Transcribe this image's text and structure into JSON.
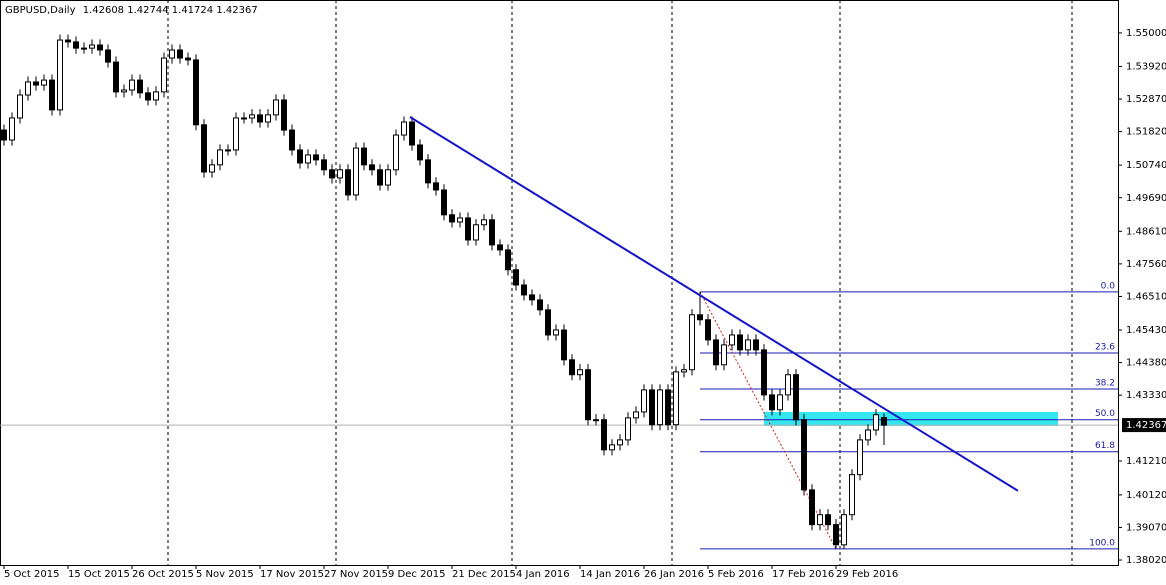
{
  "chart_data": {
    "type": "candlestick",
    "symbol": "GBPUSD,Daily",
    "xlim": [
      -0.5,
      139.25
    ],
    "ylim": [
      1.3786,
      1.5606
    ],
    "yticks": [
      {
        "value": 1.55,
        "label": "1.55000"
      },
      {
        "value": 1.5392,
        "label": "1.53920"
      },
      {
        "value": 1.5287,
        "label": "1.52870"
      },
      {
        "value": 1.5182,
        "label": "1.51820"
      },
      {
        "value": 1.5074,
        "label": "1.50740"
      },
      {
        "value": 1.4969,
        "label": "1.49690"
      },
      {
        "value": 1.4861,
        "label": "1.48610"
      },
      {
        "value": 1.4756,
        "label": "1.47560"
      },
      {
        "value": 1.4651,
        "label": "1.46510"
      },
      {
        "value": 1.4543,
        "label": "1.45430"
      },
      {
        "value": 1.4438,
        "label": "1.44380"
      },
      {
        "value": 1.4333,
        "label": "1.43330"
      },
      {
        "value": 1.4121,
        "label": "1.41210"
      },
      {
        "value": 1.4012,
        "label": "1.40120"
      },
      {
        "value": 1.3907,
        "label": "1.39070"
      },
      {
        "value": 1.3802,
        "label": "1.38020"
      }
    ],
    "xticks": [
      {
        "value": 0,
        "label": "5 Oct 2015"
      },
      {
        "value": 8,
        "label": "15 Oct 2015"
      },
      {
        "value": 16,
        "label": "26 Oct 2015"
      },
      {
        "value": 24,
        "label": "5 Nov 2015"
      },
      {
        "value": 32,
        "label": "17 Nov 2015"
      },
      {
        "value": 40,
        "label": "27 Nov 2015"
      },
      {
        "value": 48,
        "label": "9 Dec 2015"
      },
      {
        "value": 56,
        "label": "21 Dec 2015"
      },
      {
        "value": 64,
        "label": "4 Jan 2016"
      },
      {
        "value": 72,
        "label": "14 Jan 2016"
      },
      {
        "value": 80,
        "label": "26 Jan 2016"
      },
      {
        "value": 88,
        "label": "5 Feb 2016"
      },
      {
        "value": 96,
        "label": "17 Feb 2016"
      },
      {
        "value": 104,
        "label": "29 Feb 2016"
      }
    ],
    "separators": [
      20.5,
      41.5,
      63.5,
      83.5,
      104.5,
      133.5
    ],
    "bull_color": "#ffffff",
    "bear_color": "#000000",
    "candles": [
      [
        1.5187,
        1.5205,
        1.5137,
        1.5155
      ],
      [
        1.5155,
        1.5244,
        1.5137,
        1.5226
      ],
      [
        1.5226,
        1.5318,
        1.5208,
        1.53
      ],
      [
        1.53,
        1.536,
        1.5282,
        1.5342
      ],
      [
        1.5342,
        1.536,
        1.5314,
        1.5332
      ],
      [
        1.5332,
        1.5366,
        1.5314,
        1.5348
      ],
      [
        1.5348,
        1.5366,
        1.5234,
        1.5252
      ],
      [
        1.5252,
        1.5495,
        1.5234,
        1.5477
      ],
      [
        1.5477,
        1.5495,
        1.5453,
        1.5471
      ],
      [
        1.5471,
        1.5489,
        1.5433,
        1.5451
      ],
      [
        1.5451,
        1.5469,
        1.5433,
        1.5451
      ],
      [
        1.5451,
        1.5479,
        1.5433,
        1.5461
      ],
      [
        1.5461,
        1.5479,
        1.5427,
        1.5445
      ],
      [
        1.5445,
        1.5463,
        1.5388,
        1.5406
      ],
      [
        1.5406,
        1.5424,
        1.5292,
        1.531
      ],
      [
        1.531,
        1.5334,
        1.5292,
        1.5316
      ],
      [
        1.5316,
        1.5366,
        1.5298,
        1.5348
      ],
      [
        1.5348,
        1.5366,
        1.5289,
        1.5307
      ],
      [
        1.5307,
        1.5325,
        1.5266,
        1.5284
      ],
      [
        1.5284,
        1.5328,
        1.5266,
        1.531
      ],
      [
        1.531,
        1.5437,
        1.5292,
        1.5419
      ],
      [
        1.5419,
        1.5463,
        1.5401,
        1.5445
      ],
      [
        1.5445,
        1.5463,
        1.5401,
        1.5419
      ],
      [
        1.5419,
        1.5437,
        1.5395,
        1.5413
      ],
      [
        1.5413,
        1.5431,
        1.5186,
        1.5204
      ],
      [
        1.5204,
        1.5222,
        1.5034,
        1.5052
      ],
      [
        1.5052,
        1.5093,
        1.5034,
        1.5075
      ],
      [
        1.5075,
        1.5141,
        1.5057,
        1.5123
      ],
      [
        1.5123,
        1.5141,
        1.5105,
        1.5123
      ],
      [
        1.5123,
        1.5244,
        1.5105,
        1.5226
      ],
      [
        1.5226,
        1.5244,
        1.5208,
        1.5226
      ],
      [
        1.5226,
        1.5254,
        1.5208,
        1.5236
      ],
      [
        1.5236,
        1.5254,
        1.5195,
        1.5213
      ],
      [
        1.5213,
        1.5254,
        1.5195,
        1.5236
      ],
      [
        1.5236,
        1.5302,
        1.5218,
        1.5284
      ],
      [
        1.5284,
        1.5302,
        1.5169,
        1.5187
      ],
      [
        1.5187,
        1.5205,
        1.5105,
        1.5123
      ],
      [
        1.5123,
        1.5141,
        1.5063,
        1.5081
      ],
      [
        1.5081,
        1.5125,
        1.5063,
        1.5107
      ],
      [
        1.5107,
        1.5125,
        1.5073,
        1.5091
      ],
      [
        1.5091,
        1.5109,
        1.5041,
        1.5059
      ],
      [
        1.5059,
        1.5077,
        1.5015,
        1.5033
      ],
      [
        1.5033,
        1.5077,
        1.5015,
        1.5059
      ],
      [
        1.5059,
        1.5077,
        1.496,
        1.4978
      ],
      [
        1.4978,
        1.5147,
        1.496,
        1.5129
      ],
      [
        1.5129,
        1.5147,
        1.5057,
        1.5075
      ],
      [
        1.5075,
        1.5093,
        1.5041,
        1.5059
      ],
      [
        1.5059,
        1.5077,
        1.4992,
        1.501
      ],
      [
        1.501,
        1.5077,
        1.4992,
        1.5059
      ],
      [
        1.5059,
        1.5189,
        1.5041,
        1.5171
      ],
      [
        1.5171,
        1.5231,
        1.5153,
        1.5213
      ],
      [
        1.5213,
        1.5231,
        1.5121,
        1.5139
      ],
      [
        1.5139,
        1.5157,
        1.5073,
        1.5091
      ],
      [
        1.5091,
        1.5109,
        1.4999,
        1.5017
      ],
      [
        1.5017,
        1.5035,
        1.4976,
        1.4994
      ],
      [
        1.4994,
        1.5012,
        1.4896,
        1.4914
      ],
      [
        1.4914,
        1.4932,
        1.4873,
        1.4891
      ],
      [
        1.4891,
        1.4922,
        1.4873,
        1.4904
      ],
      [
        1.4904,
        1.4922,
        1.4815,
        1.4833
      ],
      [
        1.4833,
        1.49,
        1.4815,
        1.4882
      ],
      [
        1.4882,
        1.4916,
        1.4864,
        1.4898
      ],
      [
        1.4898,
        1.4916,
        1.4799,
        1.4817
      ],
      [
        1.4817,
        1.4835,
        1.4783,
        1.4801
      ],
      [
        1.4801,
        1.4819,
        1.4719,
        1.4737
      ],
      [
        1.4737,
        1.4755,
        1.467,
        1.4688
      ],
      [
        1.4688,
        1.4706,
        1.4638,
        1.4656
      ],
      [
        1.4656,
        1.4674,
        1.4622,
        1.464
      ],
      [
        1.464,
        1.4658,
        1.459,
        1.4608
      ],
      [
        1.4608,
        1.4626,
        1.4509,
        1.4527
      ],
      [
        1.4527,
        1.4561,
        1.4509,
        1.4543
      ],
      [
        1.4543,
        1.4561,
        1.4429,
        1.4447
      ],
      [
        1.4447,
        1.4465,
        1.4381,
        1.4399
      ],
      [
        1.4399,
        1.4433,
        1.4381,
        1.4415
      ],
      [
        1.4415,
        1.4433,
        1.4236,
        1.4254
      ],
      [
        1.4254,
        1.4272,
        1.4236,
        1.4254
      ],
      [
        1.4254,
        1.4272,
        1.4139,
        1.4157
      ],
      [
        1.4157,
        1.4191,
        1.4139,
        1.4173
      ],
      [
        1.4173,
        1.4207,
        1.4155,
        1.4189
      ],
      [
        1.4189,
        1.4278,
        1.4171,
        1.426
      ],
      [
        1.426,
        1.4297,
        1.4242,
        1.4279
      ],
      [
        1.4279,
        1.4368,
        1.4261,
        1.435
      ],
      [
        1.435,
        1.4368,
        1.422,
        1.4238
      ],
      [
        1.4238,
        1.4368,
        1.422,
        1.435
      ],
      [
        1.435,
        1.4368,
        1.422,
        1.4238
      ],
      [
        1.4238,
        1.4426,
        1.422,
        1.4408
      ],
      [
        1.4408,
        1.4433,
        1.439,
        1.4415
      ],
      [
        1.4415,
        1.461,
        1.4397,
        1.4592
      ],
      [
        1.4592,
        1.4666,
        1.4558,
        1.4576
      ],
      [
        1.4576,
        1.4594,
        1.4493,
        1.4511
      ],
      [
        1.4511,
        1.4529,
        1.4413,
        1.4431
      ],
      [
        1.4431,
        1.4513,
        1.4413,
        1.4495
      ],
      [
        1.4495,
        1.4545,
        1.4477,
        1.4527
      ],
      [
        1.4527,
        1.4545,
        1.4461,
        1.4479
      ],
      [
        1.4479,
        1.4529,
        1.4461,
        1.4511
      ],
      [
        1.4511,
        1.4529,
        1.4461,
        1.4479
      ],
      [
        1.4479,
        1.4497,
        1.4316,
        1.4334
      ],
      [
        1.4334,
        1.4352,
        1.4268,
        1.4286
      ],
      [
        1.4286,
        1.4352,
        1.4268,
        1.4334
      ],
      [
        1.4334,
        1.4417,
        1.4316,
        1.4399
      ],
      [
        1.4399,
        1.4417,
        1.4236,
        1.4254
      ],
      [
        1.4254,
        1.4272,
        1.401,
        1.4028
      ],
      [
        1.4028,
        1.4046,
        1.3898,
        1.3916
      ],
      [
        1.3916,
        1.3966,
        1.3898,
        1.3948
      ],
      [
        1.3948,
        1.3966,
        1.3898,
        1.3916
      ],
      [
        1.3916,
        1.3934,
        1.3838,
        1.3851
      ],
      [
        1.3851,
        1.3966,
        1.3838,
        1.3948
      ],
      [
        1.3948,
        1.4095,
        1.393,
        1.4077
      ],
      [
        1.4077,
        1.4207,
        1.4059,
        1.4189
      ],
      [
        1.4189,
        1.4239,
        1.4171,
        1.4221
      ],
      [
        1.4221,
        1.4288,
        1.4203,
        1.427
      ],
      [
        1.42608,
        1.42744,
        1.41724,
        1.42367
      ]
    ],
    "fib": {
      "start": 87,
      "end": 104,
      "color": "#1a1ab4",
      "levels": [
        {
          "label": "0.0",
          "value": 1.4666
        },
        {
          "label": "23.6",
          "value": 1.4469
        },
        {
          "label": "38.2",
          "value": 1.4353
        },
        {
          "label": "50.0",
          "value": 1.4254
        },
        {
          "label": "61.8",
          "value": 1.4151
        },
        {
          "label": "100.0",
          "value": 1.3838
        }
      ]
    },
    "trendline": {
      "x": [
        50.75,
        126.75
      ],
      "y": [
        1.5229,
        1.4025
      ],
      "color": "#1414c8"
    },
    "zone": {
      "x": [
        95,
        131.75
      ],
      "y": [
        1.4234,
        1.4279
      ],
      "color": "#33e6f0"
    }
  }
}
